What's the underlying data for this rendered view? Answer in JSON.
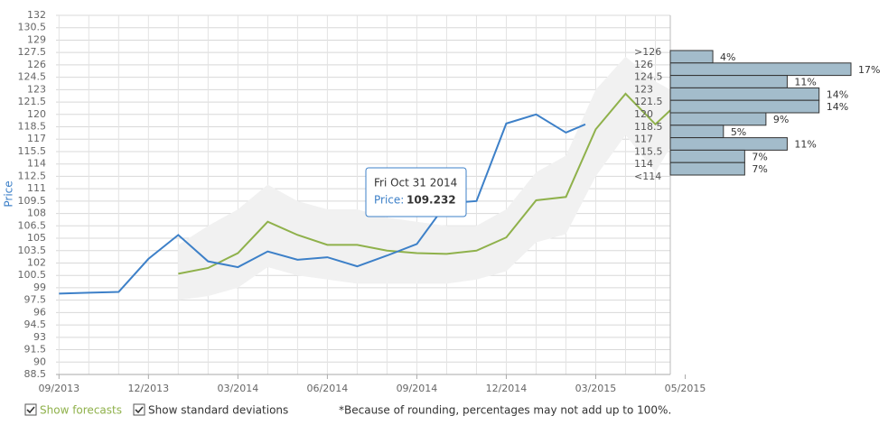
{
  "chart_data": {
    "type": "line",
    "y_label": "Price",
    "ylim": [
      88.5,
      132
    ],
    "yticks": [
      132,
      130.5,
      129,
      127.5,
      126,
      124.5,
      123,
      121.5,
      120,
      118.5,
      117,
      115.5,
      114,
      112.5,
      111,
      109.5,
      108,
      106.5,
      105,
      103.5,
      102,
      100.5,
      99,
      97.5,
      96,
      94.5,
      93,
      91.5,
      90,
      88.5
    ],
    "xlim": [
      -0.1,
      20.5
    ],
    "xticks": [
      {
        "value": 0,
        "label": "09/2013"
      },
      {
        "value": 3,
        "label": "12/2013"
      },
      {
        "value": 6,
        "label": "03/2014"
      },
      {
        "value": 9,
        "label": "06/2014"
      },
      {
        "value": 12,
        "label": "09/2014"
      },
      {
        "value": 15,
        "label": "12/2014"
      },
      {
        "value": 18,
        "label": "03/2015"
      },
      {
        "value": 21,
        "label": "05/2015"
      }
    ],
    "minor_xticks": [
      0,
      1,
      2,
      3,
      4,
      5,
      6,
      7,
      8,
      9,
      10,
      11,
      12,
      13,
      14,
      15,
      16,
      17,
      18,
      19,
      20
    ],
    "grid": true,
    "series": [
      {
        "name": "Price",
        "color": "#3d80c8",
        "x": [
          0,
          1,
          2,
          3,
          4,
          5,
          6,
          7,
          8,
          9,
          10,
          11,
          12,
          13,
          14,
          15,
          16,
          17,
          17.65
        ],
        "values": [
          98.3,
          98.4,
          98.5,
          102.5,
          105.4,
          102.2,
          101.5,
          103.4,
          102.4,
          102.7,
          101.6,
          102.9,
          104.3,
          109.232,
          109.5,
          118.9,
          120.0,
          117.8,
          118.8
        ]
      },
      {
        "color": "#8fb14b",
        "x": [
          4,
          5,
          6,
          7,
          8,
          9,
          10,
          11,
          12,
          13,
          14,
          15,
          16,
          17,
          18,
          19,
          20,
          20.5
        ],
        "values": [
          100.7,
          101.4,
          103.2,
          107.0,
          105.4,
          104.2,
          104.2,
          103.5,
          103.2,
          103.1,
          103.5,
          105.1,
          109.6,
          110.0,
          118.2,
          122.5,
          118.8,
          120.5
        ]
      }
    ],
    "band": {
      "color": "#f1f1f1",
      "x": [
        4,
        5,
        6,
        7,
        8,
        9,
        10,
        11,
        12,
        13,
        14,
        15,
        16,
        17,
        18,
        19,
        20,
        20.5
      ],
      "upper": [
        104.2,
        106.5,
        108.5,
        111.5,
        109.5,
        108.5,
        108.5,
        107.5,
        107.0,
        106.5,
        106.5,
        108.5,
        113.0,
        115.0,
        123.0,
        127.0,
        124.0,
        123.0
      ],
      "lower": [
        97.5,
        98.0,
        99.0,
        101.5,
        100.5,
        100.0,
        99.5,
        99.5,
        99.5,
        99.5,
        100.0,
        101.0,
        104.5,
        105.5,
        112.5,
        117.5,
        113.0,
        116.0
      ]
    },
    "histogram": {
      "color": "#a3bccb",
      "xlim": [
        0,
        17
      ],
      "bin_labels": [
        ">126",
        "126",
        "124.5",
        "123",
        "121.5",
        "120",
        "118.5",
        "117",
        "115.5",
        "114",
        "<114"
      ],
      "values": [
        4,
        17,
        11,
        14,
        14,
        9,
        5,
        11,
        7,
        7
      ],
      "value_labels": [
        "4%",
        "17%",
        "11%",
        "14%",
        "14%",
        "9%",
        "5%",
        "11%",
        "7%",
        "7%"
      ]
    },
    "tooltip": {
      "date": "Fri Oct 31 2014",
      "label": "Price:"
    },
    "controls": [
      "Show forecasts",
      "Show standard deviations"
    ],
    "note": "*Because of rounding, percentages may not add up to 100%."
  }
}
